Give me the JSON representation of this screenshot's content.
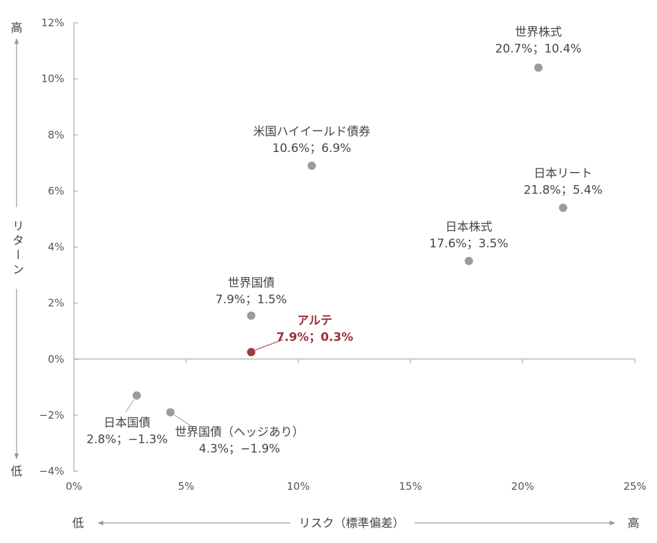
{
  "chart_data": {
    "type": "scatter",
    "xlabel": "リスク（標準偏差）",
    "ylabel": "リターン",
    "x_low": "低",
    "x_high": "高",
    "y_high": "高",
    "y_low": "低",
    "xlim": [
      0,
      25
    ],
    "ylim": [
      -4,
      12
    ],
    "x_ticks": [
      0,
      5,
      10,
      15,
      20,
      25
    ],
    "x_tick_labels": [
      "0%",
      "5%",
      "10%",
      "15%",
      "20%",
      "25%"
    ],
    "y_ticks": [
      12,
      10,
      8,
      6,
      4,
      2,
      0,
      -2,
      -4
    ],
    "y_tick_labels": [
      "12%",
      "10%",
      "8%",
      "6%",
      "4%",
      "2%",
      "0%",
      "−2%",
      "−4%"
    ],
    "colors": {
      "point": "#9b9b9b",
      "highlight": "#a03a44",
      "axis": "#999999",
      "text": "#444444"
    },
    "points": [
      {
        "name": "世界株式",
        "value_label": "20.7%；10.4%",
        "x": 20.7,
        "y": 10.4,
        "highlight": false
      },
      {
        "name": "米国ハイイールド債券",
        "value_label": "10.6%；6.9%",
        "x": 10.6,
        "y": 6.9,
        "highlight": false
      },
      {
        "name": "日本リート",
        "value_label": "21.8%；5.4%",
        "x": 21.8,
        "y": 5.4,
        "highlight": false
      },
      {
        "name": "日本株式",
        "value_label": "17.6%；3.5%",
        "x": 17.6,
        "y": 3.5,
        "highlight": false
      },
      {
        "name": "世界国債",
        "value_label": "7.9%；1.5%",
        "x": 7.9,
        "y": 1.55,
        "highlight": false
      },
      {
        "name": "アルテ",
        "value_label": "7.9%；0.3%",
        "x": 7.9,
        "y": 0.25,
        "highlight": true
      },
      {
        "name": "日本国債",
        "value_label": "2.8%；−1.3%",
        "x": 2.8,
        "y": -1.3,
        "highlight": false
      },
      {
        "name": "世界国債（ヘッジあり）",
        "value_label": "4.3%；−1.9%",
        "x": 4.3,
        "y": -1.9,
        "highlight": false
      }
    ]
  }
}
